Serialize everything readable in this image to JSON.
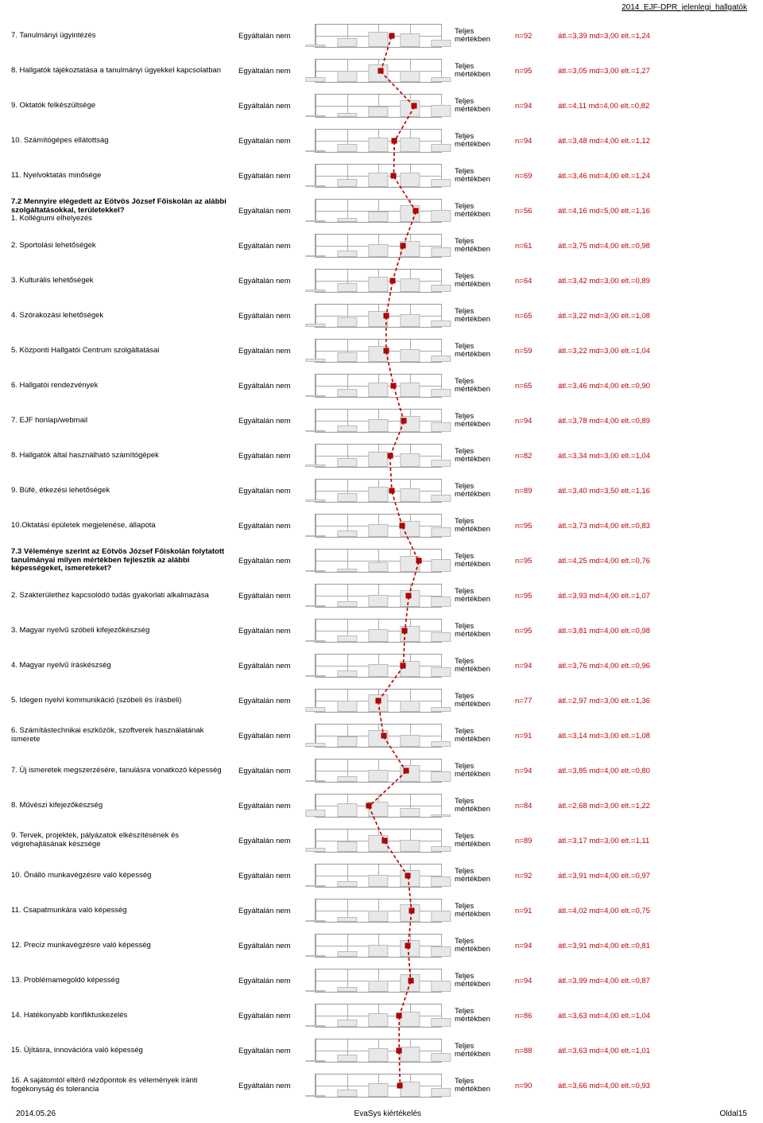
{
  "doc_header": "2014_EJF-DPR_jelenlegi_hallgatók",
  "footer": {
    "date": "2014.05.26",
    "center": "EvaSys kiértékelés",
    "page": "Oldal15"
  },
  "common": {
    "left_anchor": "Egyáltalán nem",
    "right_anchor_l1": "Teljes",
    "right_anchor_l2": "mértékben",
    "scale_points": 5,
    "colors": {
      "accent": "#c00000",
      "grid": "#aaaaaa",
      "background": "#ffffff"
    }
  },
  "rows": [
    {
      "label": "7. Tanulmányi ügyintézés",
      "n": "n=92",
      "stats": "átl.=3,39 md=3,00 elt.=1,24",
      "mean": 3.39
    },
    {
      "label": "8. Hallgatók tájékoztatása a tanulmányi ügyekkel kapcsolatban",
      "n": "n=95",
      "stats": "átl.=3,05 md=3,00 elt.=1,27",
      "mean": 3.05
    },
    {
      "label": "9. Oktatók felkészültsége",
      "n": "n=94",
      "stats": "átl.=4,11 md=4,00 elt.=0,82",
      "mean": 4.11
    },
    {
      "label": "10. Számítógépes ellátottság",
      "n": "n=94",
      "stats": "átl.=3,48 md=4,00 elt.=1,12",
      "mean": 3.48
    },
    {
      "label": "11. Nyelvoktatás minősége",
      "n": "n=69",
      "stats": "átl.=3,46 md=4,00 elt.=1,24",
      "mean": 3.46
    },
    {
      "label": "7.2 Mennyire elégedett az Eötvös József Főiskolán az alábbi  szolgáltatásokkal, területekkel?",
      "sublabel": "1. Kollégiumi elhelyezés",
      "bold": true,
      "n": "n=56",
      "stats": "átl.=4,16 md=5,00 elt.=1,16",
      "mean": 4.16
    },
    {
      "label": "2. Sportolási lehetőségek",
      "n": "n=61",
      "stats": "átl.=3,75 md=4,00 elt.=0,98",
      "mean": 3.75
    },
    {
      "label": "3. Kulturális lehetőségek",
      "n": "n=64",
      "stats": "átl.=3,42 md=3,00 elt.=0,89",
      "mean": 3.42
    },
    {
      "label": "4. Szórakozási lehetőségek",
      "n": "n=65",
      "stats": "átl.=3,22 md=3,00 elt.=1,08",
      "mean": 3.22
    },
    {
      "label": "5. Központi Hallgatói Centrum szolgáltatásai",
      "n": "n=59",
      "stats": "átl.=3,22 md=3,00 elt.=1,04",
      "mean": 3.22
    },
    {
      "label": "6. Hallgatói rendezvények",
      "n": "n=65",
      "stats": "átl.=3,46 md=4,00 elt.=0,90",
      "mean": 3.46
    },
    {
      "label": "7. EJF honlap/webmail",
      "n": "n=94",
      "stats": "átl.=3,78 md=4,00 elt.=0,89",
      "mean": 3.78
    },
    {
      "label": "8. Hallgatók által használható számítógépek",
      "n": "n=82",
      "stats": "átl.=3,34 md=3,00 elt.=1,04",
      "mean": 3.34
    },
    {
      "label": "9. Büfé, étkezési lehetőségek",
      "n": "n=89",
      "stats": "átl.=3,40 md=3,50 elt.=1,16",
      "mean": 3.4
    },
    {
      "label": "10.Oktatási épületek megjelenése, állapota",
      "n": "n=95",
      "stats": "átl.=3,73 md=4,00 elt.=0,83",
      "mean": 3.73
    },
    {
      "label": "7.3 Véleménye szerint az Eötvös József Főiskolán folytatott tanulmányai  milyen mértékben fejlesztik az alábbi képességeket, ismereteket?",
      "bold": true,
      "n": "n=95",
      "stats": "átl.=4,25 md=4,00 elt.=0,76",
      "mean": 4.25
    },
    {
      "label": "2. Szakterülethez kapcsolódó tudás gyakorlati alkalmazása",
      "n": "n=95",
      "stats": "átl.=3,93 md=4,00 elt.=1,07",
      "mean": 3.93
    },
    {
      "label": "3. Magyar nyelvű szóbeli kifejezőkészség",
      "n": "n=95",
      "stats": "átl.=3,81 md=4,00 elt.=0,98",
      "mean": 3.81
    },
    {
      "label": "4. Magyar nyelvű íráskészség",
      "n": "n=94",
      "stats": "átl.=3,76 md=4,00 elt.=0,96",
      "mean": 3.76
    },
    {
      "label": "5. Idegen nyelvi kommunikáció (szóbeli és írásbeli)",
      "n": "n=77",
      "stats": "átl.=2,97 md=3,00 elt.=1,36",
      "mean": 2.97
    },
    {
      "label": "6. Számítástechnikai eszközök, szoftverek használatának ismerete",
      "n": "n=91",
      "stats": "átl.=3,14 md=3,00 elt.=1,08",
      "mean": 3.14
    },
    {
      "label": "7. Új ismeretek megszerzésére, tanulásra vonatkozó képesség",
      "n": "n=94",
      "stats": "átl.=3,85 md=4,00 elt.=0,80",
      "mean": 3.85
    },
    {
      "label": "8. Művészi kifejezőkészség",
      "n": "n=84",
      "stats": "átl.=2,68 md=3,00 elt.=1,22",
      "mean": 2.68
    },
    {
      "label": "9. Tervek, projektek, pályázatok elkészítésének és végrehajtásának készsége",
      "n": "n=89",
      "stats": "átl.=3,17 md=3,00 elt.=1,11",
      "mean": 3.17
    },
    {
      "label": "10. Önálló munkavégzésre való képesség",
      "n": "n=92",
      "stats": "átl.=3,91 md=4,00 elt.=0,97",
      "mean": 3.91
    },
    {
      "label": "11. Csapatmunkára való képesség",
      "n": "n=91",
      "stats": "átl.=4,02 md=4,00 elt.=0,75",
      "mean": 4.02
    },
    {
      "label": "12. Precíz munkavégzésre való képesség",
      "n": "n=94",
      "stats": "átl.=3,91 md=4,00 elt.=0,81",
      "mean": 3.91
    },
    {
      "label": "13. Problémamegoldó képesség",
      "n": "n=94",
      "stats": "átl.=3,99 md=4,00 elt.=0,87",
      "mean": 3.99
    },
    {
      "label": "14. Hatékonyabb konfliktuskezelés",
      "n": "n=86",
      "stats": "átl.=3,63 md=4,00 elt.=1,04",
      "mean": 3.63
    },
    {
      "label": "15. Újításra, innovációra való képesség",
      "n": "n=88",
      "stats": "átl.=3,63 md=4,00 elt.=1,01",
      "mean": 3.63
    },
    {
      "label": "16. A sajátomtól eltérő nézőpontok és vélemények iránti fogékonyság és tolerancia",
      "n": "n=90",
      "stats": "átl.=3,66 md=4,00 elt.=0,93",
      "mean": 3.66
    }
  ]
}
